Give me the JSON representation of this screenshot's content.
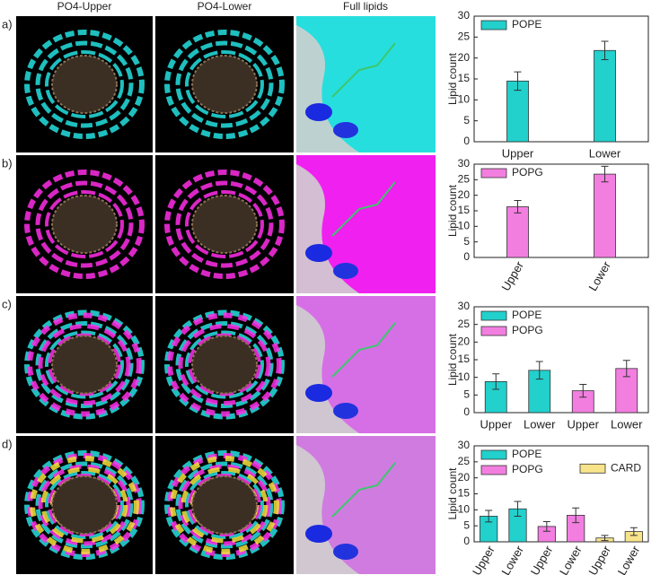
{
  "headers": [
    "PO4-Upper",
    "PO4-Lower",
    "Full lipids"
  ],
  "panel_labels": [
    "a)",
    "b)",
    "c)",
    "d)"
  ],
  "chart_data": [
    {
      "type": "bar",
      "ylabel": "Lipid count",
      "categories": [
        "Upper",
        "Lower"
      ],
      "series": [
        {
          "name": "POPE",
          "color": "#22d0cc",
          "values": [
            14.5,
            21.8
          ],
          "errors": [
            2.2,
            2.2
          ]
        }
      ],
      "ylim": [
        0,
        30
      ],
      "yticks": [
        0,
        5,
        10,
        15,
        20,
        25,
        30
      ],
      "legend": "upper left",
      "xtick_rotation": 0
    },
    {
      "type": "bar",
      "ylabel": "Lipid count",
      "categories": [
        "Upper",
        "Lower"
      ],
      "series": [
        {
          "name": "POPG",
          "color": "#f27ee0",
          "values": [
            16.3,
            26.8
          ],
          "errors": [
            2.0,
            2.5
          ]
        }
      ],
      "ylim": [
        0,
        30
      ],
      "yticks": [
        0,
        5,
        10,
        15,
        20,
        25,
        30
      ],
      "legend": "upper left",
      "xtick_rotation": 60
    },
    {
      "type": "bar",
      "ylabel": "Lipid count",
      "categories": [
        "Upper",
        "Lower",
        "Upper",
        "Lower"
      ],
      "series": [
        {
          "name": "POPE",
          "color": "#22d0cc",
          "values": [
            8.8,
            12.0,
            null,
            null
          ],
          "errors": [
            2.2,
            2.5,
            null,
            null
          ]
        },
        {
          "name": "POPG",
          "color": "#f27ee0",
          "values": [
            null,
            null,
            6.2,
            12.5
          ],
          "errors": [
            null,
            null,
            1.8,
            2.3
          ]
        }
      ],
      "ylim": [
        0,
        30
      ],
      "yticks": [
        0,
        5,
        10,
        15,
        20,
        25,
        30
      ],
      "legend": "upper left",
      "xtick_rotation": 0
    },
    {
      "type": "bar",
      "ylabel": "Lipid count",
      "categories": [
        "Upper",
        "Lower",
        "Upper",
        "Lower",
        "Upper",
        "Lower"
      ],
      "series": [
        {
          "name": "POPE",
          "color": "#22d0cc",
          "values": [
            8.0,
            10.3,
            null,
            null,
            null,
            null
          ],
          "errors": [
            1.8,
            2.3,
            null,
            null,
            null,
            null
          ]
        },
        {
          "name": "POPG",
          "color": "#f27ee0",
          "values": [
            null,
            null,
            4.8,
            8.3,
            null,
            null
          ],
          "errors": [
            null,
            null,
            1.5,
            2.3,
            null,
            null
          ]
        },
        {
          "name": "CARD",
          "color": "#f7e38a",
          "values": [
            null,
            null,
            null,
            null,
            1.2,
            3.2
          ],
          "errors": [
            null,
            null,
            null,
            null,
            0.8,
            1.2
          ]
        }
      ],
      "ylim": [
        0,
        30
      ],
      "yticks": [
        0,
        5,
        10,
        15,
        20,
        25,
        30
      ],
      "legend": "upper left",
      "xtick_rotation": 60
    }
  ]
}
